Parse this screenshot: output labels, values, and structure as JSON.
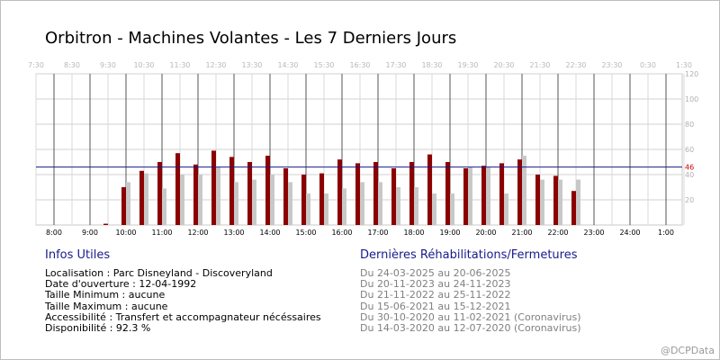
{
  "title": "Orbitron - Machines Volantes - Les 7 Derniers Jours",
  "chart_data": {
    "type": "bar",
    "title": "Orbitron - Machines Volantes - Les 7 Derniers Jours",
    "x_start_hour": 8,
    "x_end_hour": 1,
    "top_ticks": [
      "7:30",
      "8:30",
      "9:30",
      "10:30",
      "11:30",
      "12:30",
      "13:30",
      "14:30",
      "15:30",
      "16:30",
      "17:30",
      "18:30",
      "19:30",
      "20:30",
      "21:30",
      "22:30",
      "23:30",
      "0:30",
      "1:30"
    ],
    "bottom_ticks": [
      "8:00",
      "9:00",
      "10:00",
      "11:00",
      "12:00",
      "13:00",
      "14:00",
      "15:00",
      "16:00",
      "17:00",
      "18:00",
      "19:00",
      "20:00",
      "21:00",
      "22:00",
      "23:00",
      "24:00",
      "1:00"
    ],
    "ylim": [
      0,
      120
    ],
    "y_ticks": [
      20,
      40,
      60,
      80,
      100,
      120
    ],
    "average": 46,
    "average_label": "46",
    "x": [
      "9:30",
      "10:00",
      "10:30",
      "11:00",
      "11:30",
      "12:00",
      "12:30",
      "13:00",
      "13:30",
      "14:00",
      "14:30",
      "15:00",
      "15:30",
      "16:00",
      "16:30",
      "17:00",
      "17:30",
      "18:00",
      "18:30",
      "19:00",
      "19:30",
      "20:00",
      "20:30",
      "21:00",
      "21:30",
      "22:00",
      "22:30"
    ],
    "series": [
      {
        "color": "#8b0000",
        "values": [
          1,
          30,
          43,
          50,
          57,
          48,
          59,
          54,
          50,
          55,
          45,
          40,
          41,
          52,
          49,
          50,
          45,
          50,
          56,
          50,
          45,
          47,
          49,
          52,
          40,
          39,
          27
        ]
      },
      {
        "color": "#c8c8c8",
        "values": [
          0,
          34,
          41,
          29,
          40,
          40,
          46,
          34,
          36,
          40,
          34,
          25,
          25,
          29,
          34,
          34,
          30,
          30,
          25,
          25,
          46,
          46,
          25,
          55,
          36,
          36,
          36
        ]
      }
    ]
  },
  "info": {
    "heading": "Infos Utiles",
    "rows": [
      "Localisation : Parc Disneyland - Discoveryland",
      "Date d'ouverture : 12-04-1992",
      "Taille Minimum : aucune",
      "Taille Maximum : aucune",
      "Accessibilité : Transfert et accompagnateur nécéssaires",
      "Disponibilité : 92.3 %"
    ]
  },
  "rehab": {
    "heading": "Dernières Réhabilitations/Fermetures",
    "rows": [
      "Du 24-03-2025 au 20-06-2025",
      "Du 20-11-2023 au 24-11-2023",
      "Du 21-11-2022 au 25-11-2022",
      "Du 15-06-2021 au 15-12-2021",
      "Du 30-10-2020 au 11-02-2021 (Coronavirus)",
      "Du 14-03-2020 au 12-07-2020 (Coronavirus)"
    ]
  },
  "watermark": "@DCPData",
  "colors": {
    "primary_bar": "#8b0000",
    "secondary_bar": "#c8c8c8",
    "average_line": "#1a1a8c",
    "average_label": "#cc0000",
    "section_heading": "#1a1a8c",
    "rehab_text": "#808080"
  }
}
